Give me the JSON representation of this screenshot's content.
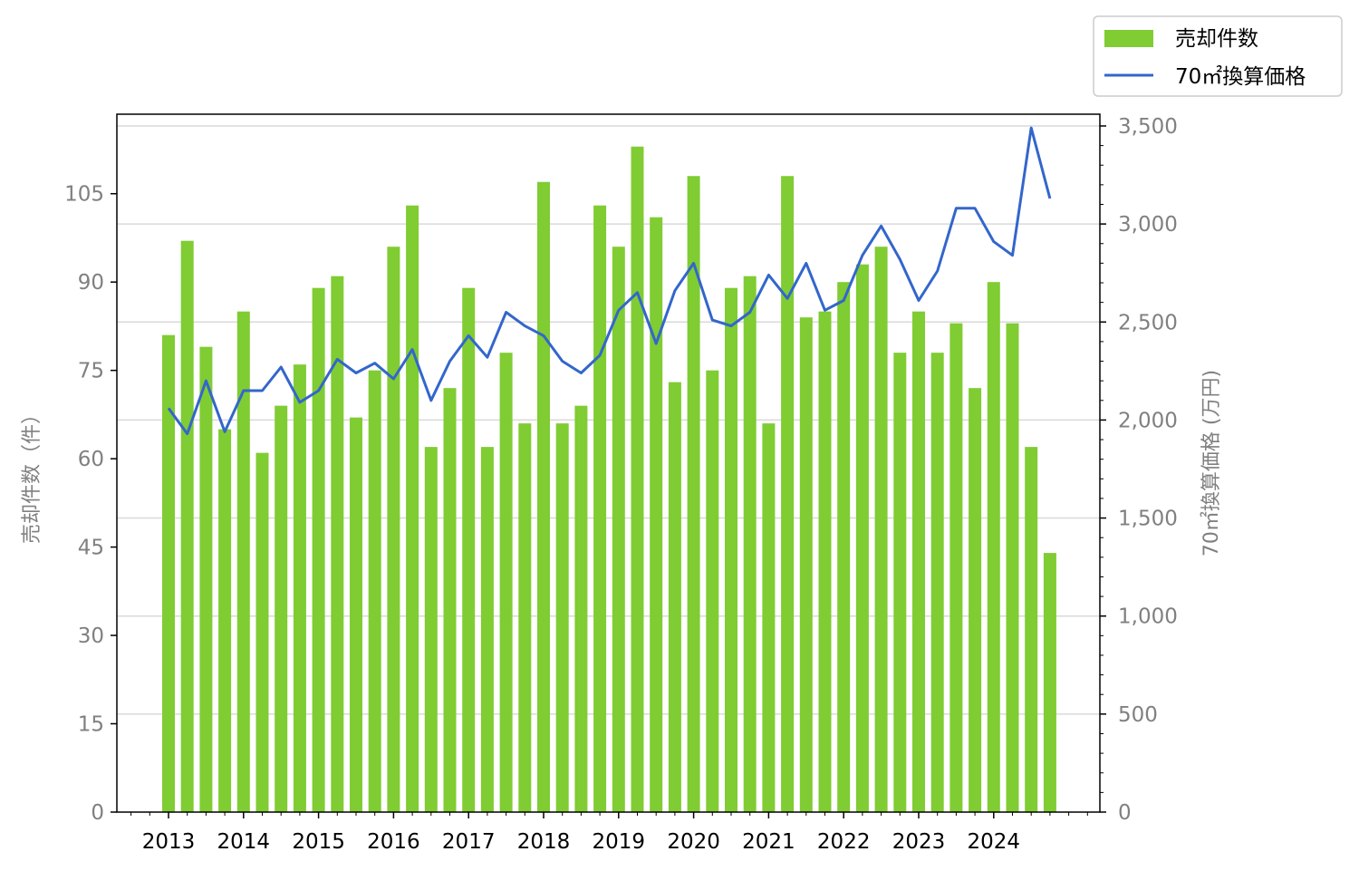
{
  "chart_data": {
    "type": "bar+line",
    "left_axis": {
      "label": "売却件数（件）",
      "ticks": [
        "0",
        "15",
        "30",
        "45",
        "60",
        "75",
        "90",
        "105"
      ],
      "ylim": [
        0,
        118.5
      ]
    },
    "right_axis": {
      "label": "70㎡換算価格 (万円)",
      "ticks": [
        "0",
        "500",
        "1,000",
        "1,500",
        "2,000",
        "2,500",
        "3,000",
        "3,500"
      ],
      "ylim": [
        0,
        3560
      ]
    },
    "x_ticks": [
      "2013",
      "2014",
      "2015",
      "2016",
      "2017",
      "2018",
      "2019",
      "2020",
      "2021",
      "2022",
      "2023",
      "2024"
    ],
    "grid": "right-axis horizontal",
    "legend": {
      "placement": "top-right",
      "entries": [
        {
          "label": "売却件数",
          "kind": "bar",
          "color": "#80cc33"
        },
        {
          "label": "70㎡換算価格",
          "kind": "line",
          "color": "#3366cc"
        }
      ]
    },
    "periods": [
      "2013 Q1",
      "2013 Q2",
      "2013 Q3",
      "2013 Q4",
      "2014 Q1",
      "2014 Q2",
      "2014 Q3",
      "2014 Q4",
      "2015 Q1",
      "2015 Q2",
      "2015 Q3",
      "2015 Q4",
      "2016 Q1",
      "2016 Q2",
      "2016 Q3",
      "2016 Q4",
      "2017 Q1",
      "2017 Q2",
      "2017 Q3",
      "2017 Q4",
      "2018 Q1",
      "2018 Q2",
      "2018 Q3",
      "2018 Q4",
      "2019 Q1",
      "2019 Q2",
      "2019 Q3",
      "2019 Q4",
      "2020 Q1",
      "2020 Q2",
      "2020 Q3",
      "2020 Q4",
      "2021 Q1",
      "2021 Q2",
      "2021 Q3",
      "2021 Q4",
      "2022 Q1",
      "2022 Q2",
      "2022 Q3",
      "2022 Q4",
      "2023 Q1",
      "2023 Q2",
      "2023 Q3",
      "2023 Q4",
      "2024 Q1",
      "2024 Q2",
      "2024 Q3",
      "2024 Q4"
    ],
    "series": [
      {
        "name": "売却件数",
        "type": "bar",
        "axis": "left",
        "color": "#80cc33",
        "values": [
          81,
          97,
          79,
          65,
          85,
          61,
          69,
          76,
          89,
          91,
          67,
          75,
          96,
          103,
          62,
          72,
          89,
          62,
          78,
          66,
          107,
          66,
          69,
          103,
          96,
          113,
          101,
          73,
          108,
          75,
          89,
          91,
          66,
          108,
          84,
          85,
          90,
          93,
          96,
          78,
          85,
          78,
          83,
          72,
          90,
          83,
          62,
          44
        ]
      },
      {
        "name": "70㎡換算価格",
        "type": "line",
        "axis": "right",
        "color": "#3366cc",
        "values": [
          2060,
          1930,
          2200,
          1940,
          2150,
          2150,
          2270,
          2090,
          2150,
          2310,
          2240,
          2290,
          2210,
          2360,
          2100,
          2300,
          2430,
          2320,
          2550,
          2480,
          2430,
          2300,
          2240,
          2330,
          2560,
          2650,
          2390,
          2660,
          2800,
          2510,
          2480,
          2550,
          2740,
          2620,
          2800,
          2560,
          2610,
          2840,
          2990,
          2820,
          2610,
          2760,
          3080,
          3080,
          2910,
          2840,
          3490,
          3130
        ]
      }
    ]
  }
}
